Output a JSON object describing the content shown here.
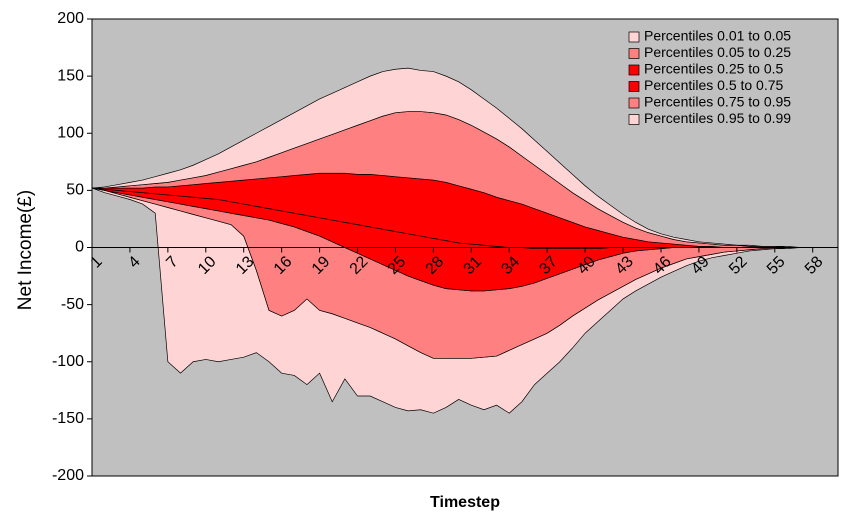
{
  "chart_data": {
    "type": "fan",
    "xlabel": "Timestep",
    "ylabel": "Net Income(£)",
    "categories": [
      "1",
      null,
      null,
      "4",
      null,
      null,
      "7",
      null,
      null,
      "10",
      null,
      null,
      "13",
      null,
      null,
      "16",
      null,
      null,
      "19",
      null,
      null,
      "22",
      null,
      null,
      "25",
      null,
      null,
      "28",
      null,
      null,
      "31",
      null,
      null,
      "34",
      null,
      null,
      "37",
      null,
      null,
      "40",
      null,
      null,
      "43",
      null,
      null,
      "46",
      null,
      null,
      "49",
      null,
      null,
      "52",
      null,
      null,
      "55",
      null,
      null,
      "58",
      null,
      null
    ],
    "ylim": [
      -200,
      200
    ],
    "yticks": [
      -200,
      -150,
      -100,
      -50,
      0,
      50,
      100,
      150,
      200
    ],
    "legend": "top-right",
    "background": "#c0c0c0",
    "series": [
      {
        "name": "Percentiles 0.01 to 0.05",
        "color": "#ffd4d4",
        "low": [
          52,
          48,
          45,
          42,
          38,
          30,
          -100,
          -110,
          -100,
          -98,
          -100,
          -98,
          -96,
          -92,
          -100,
          -110,
          -112,
          -120,
          -110,
          -135,
          -115,
          -130,
          -130,
          -135,
          -140,
          -143,
          -142,
          -145,
          -140,
          -133,
          -138,
          -142,
          -138,
          -145,
          -135,
          -120,
          -110,
          -100,
          -88,
          -75,
          -65,
          -55,
          -45,
          -38,
          -32,
          -26,
          -21,
          -16,
          -12,
          -9,
          -7,
          -5,
          -3,
          -2,
          -1,
          -1,
          0,
          0,
          0,
          0
        ],
        "high": [
          52,
          50,
          47,
          44,
          41,
          38,
          35,
          32,
          29,
          26,
          23,
          20,
          10,
          -20,
          -55,
          -60,
          -55,
          -45,
          -55,
          -58,
          -62,
          -66,
          -70,
          -75,
          -80,
          -86,
          -92,
          -97,
          -97,
          -97,
          -97,
          -96,
          -95,
          -90,
          -85,
          -80,
          -75,
          -68,
          -60,
          -53,
          -46,
          -40,
          -34,
          -28,
          -23,
          -18,
          -14,
          -10,
          -8,
          -6,
          -4,
          -3,
          -2,
          -1,
          -1,
          0,
          0,
          0,
          0,
          0
        ]
      },
      {
        "name": "Percentiles 0.05 to 0.25",
        "color": "#ff8080",
        "low": [
          52,
          50,
          47,
          44,
          41,
          38,
          35,
          32,
          29,
          26,
          23,
          20,
          10,
          -20,
          -55,
          -60,
          -55,
          -45,
          -55,
          -58,
          -62,
          -66,
          -70,
          -75,
          -80,
          -86,
          -92,
          -97,
          -97,
          -97,
          -97,
          -96,
          -95,
          -90,
          -85,
          -80,
          -75,
          -68,
          -60,
          -53,
          -46,
          -40,
          -34,
          -28,
          -23,
          -18,
          -14,
          -10,
          -8,
          -6,
          -4,
          -3,
          -2,
          -1,
          -1,
          0,
          0,
          0,
          0,
          0
        ],
        "high": [
          52,
          50,
          48,
          46,
          44,
          42,
          40,
          38,
          36,
          34,
          32,
          30,
          28,
          26,
          24,
          21,
          18,
          14,
          10,
          5,
          0,
          -5,
          -10,
          -15,
          -20,
          -25,
          -29,
          -33,
          -36,
          -37,
          -38,
          -38,
          -37,
          -36,
          -34,
          -31,
          -27,
          -23,
          -19,
          -15,
          -11,
          -8,
          -5,
          -3,
          -2,
          -1,
          0,
          0,
          0,
          0,
          0,
          0,
          0,
          0,
          0,
          0,
          0,
          0,
          0,
          0
        ]
      },
      {
        "name": "Percentiles 0.25 to 0.5",
        "color": "#ff0000",
        "low": [
          52,
          50,
          48,
          46,
          44,
          42,
          40,
          38,
          36,
          34,
          32,
          30,
          28,
          26,
          24,
          21,
          18,
          14,
          10,
          5,
          0,
          -5,
          -10,
          -15,
          -20,
          -25,
          -29,
          -33,
          -36,
          -37,
          -38,
          -38,
          -37,
          -36,
          -34,
          -31,
          -27,
          -23,
          -19,
          -15,
          -11,
          -8,
          -5,
          -3,
          -2,
          -1,
          0,
          0,
          0,
          0,
          0,
          0,
          0,
          0,
          0,
          0,
          0,
          0,
          0,
          0
        ],
        "high": [
          52,
          51,
          50,
          49,
          48,
          47,
          46,
          45,
          44,
          43,
          42,
          40,
          38,
          36,
          34,
          32,
          30,
          28,
          26,
          24,
          22,
          20,
          18,
          16,
          14,
          12,
          10,
          8,
          6,
          4,
          3,
          2,
          1,
          0,
          0,
          -1,
          -1,
          -1,
          -1,
          -1,
          -1,
          0,
          0,
          0,
          0,
          0,
          0,
          0,
          0,
          0,
          0,
          0,
          0,
          0,
          0,
          0,
          0,
          0,
          0,
          0
        ]
      },
      {
        "name": "Percentiles 0.5 to 0.75",
        "color": "#ff0000",
        "low": [
          52,
          51,
          50,
          49,
          48,
          47,
          46,
          45,
          44,
          43,
          42,
          40,
          38,
          36,
          34,
          32,
          30,
          28,
          26,
          24,
          22,
          20,
          18,
          16,
          14,
          12,
          10,
          8,
          6,
          4,
          3,
          2,
          1,
          0,
          0,
          -1,
          -1,
          -1,
          -1,
          -1,
          -1,
          0,
          0,
          0,
          0,
          0,
          0,
          0,
          0,
          0,
          0,
          0,
          0,
          0,
          0,
          0,
          0,
          0,
          0,
          0
        ],
        "high": [
          52,
          52,
          52,
          52,
          52,
          53,
          53,
          54,
          55,
          56,
          57,
          58,
          59,
          60,
          61,
          62,
          63,
          64,
          65,
          65,
          65,
          64,
          64,
          63,
          62,
          61,
          60,
          59,
          57,
          54,
          51,
          48,
          44,
          41,
          38,
          34,
          30,
          26,
          22,
          18,
          15,
          12,
          9,
          7,
          5,
          4,
          3,
          2,
          1,
          1,
          0,
          0,
          0,
          0,
          0,
          0,
          0,
          0,
          0,
          0
        ]
      },
      {
        "name": "Percentiles 0.75 to 0.95",
        "color": "#ff8080",
        "low": [
          52,
          52,
          52,
          52,
          52,
          53,
          53,
          54,
          55,
          56,
          57,
          58,
          59,
          60,
          61,
          62,
          63,
          64,
          65,
          65,
          65,
          64,
          64,
          63,
          62,
          61,
          60,
          59,
          57,
          54,
          51,
          48,
          44,
          41,
          38,
          34,
          30,
          26,
          22,
          18,
          15,
          12,
          9,
          7,
          5,
          4,
          3,
          2,
          1,
          1,
          0,
          0,
          0,
          0,
          0,
          0,
          0,
          0,
          0,
          0
        ],
        "high": [
          52,
          52,
          53,
          54,
          55,
          56,
          57,
          59,
          61,
          63,
          66,
          69,
          72,
          75,
          79,
          83,
          87,
          91,
          95,
          99,
          103,
          107,
          111,
          115,
          118,
          119,
          119,
          118,
          116,
          112,
          107,
          101,
          95,
          88,
          80,
          72,
          64,
          56,
          48,
          41,
          34,
          28,
          22,
          17,
          13,
          10,
          7,
          5,
          4,
          3,
          2,
          2,
          1,
          1,
          1,
          0,
          0,
          0,
          0,
          0
        ]
      },
      {
        "name": "Percentiles 0.95 to 0.99",
        "color": "#ffd4d4",
        "low": [
          52,
          52,
          53,
          54,
          55,
          56,
          57,
          59,
          61,
          63,
          66,
          69,
          72,
          75,
          79,
          83,
          87,
          91,
          95,
          99,
          103,
          107,
          111,
          115,
          118,
          119,
          119,
          118,
          116,
          112,
          107,
          101,
          95,
          88,
          80,
          72,
          64,
          56,
          48,
          41,
          34,
          28,
          22,
          17,
          13,
          10,
          7,
          5,
          4,
          3,
          2,
          2,
          1,
          1,
          1,
          0,
          0,
          0,
          0,
          0
        ],
        "high": [
          52,
          53,
          55,
          57,
          59,
          62,
          65,
          68,
          72,
          77,
          82,
          88,
          94,
          100,
          106,
          112,
          118,
          124,
          130,
          135,
          140,
          145,
          150,
          154,
          156,
          157,
          155,
          154,
          150,
          145,
          138,
          130,
          122,
          113,
          104,
          94,
          84,
          74,
          64,
          54,
          45,
          37,
          29,
          22,
          16,
          12,
          9,
          7,
          5,
          4,
          3,
          2,
          2,
          1,
          1,
          1,
          0,
          0,
          0,
          0
        ]
      }
    ]
  }
}
